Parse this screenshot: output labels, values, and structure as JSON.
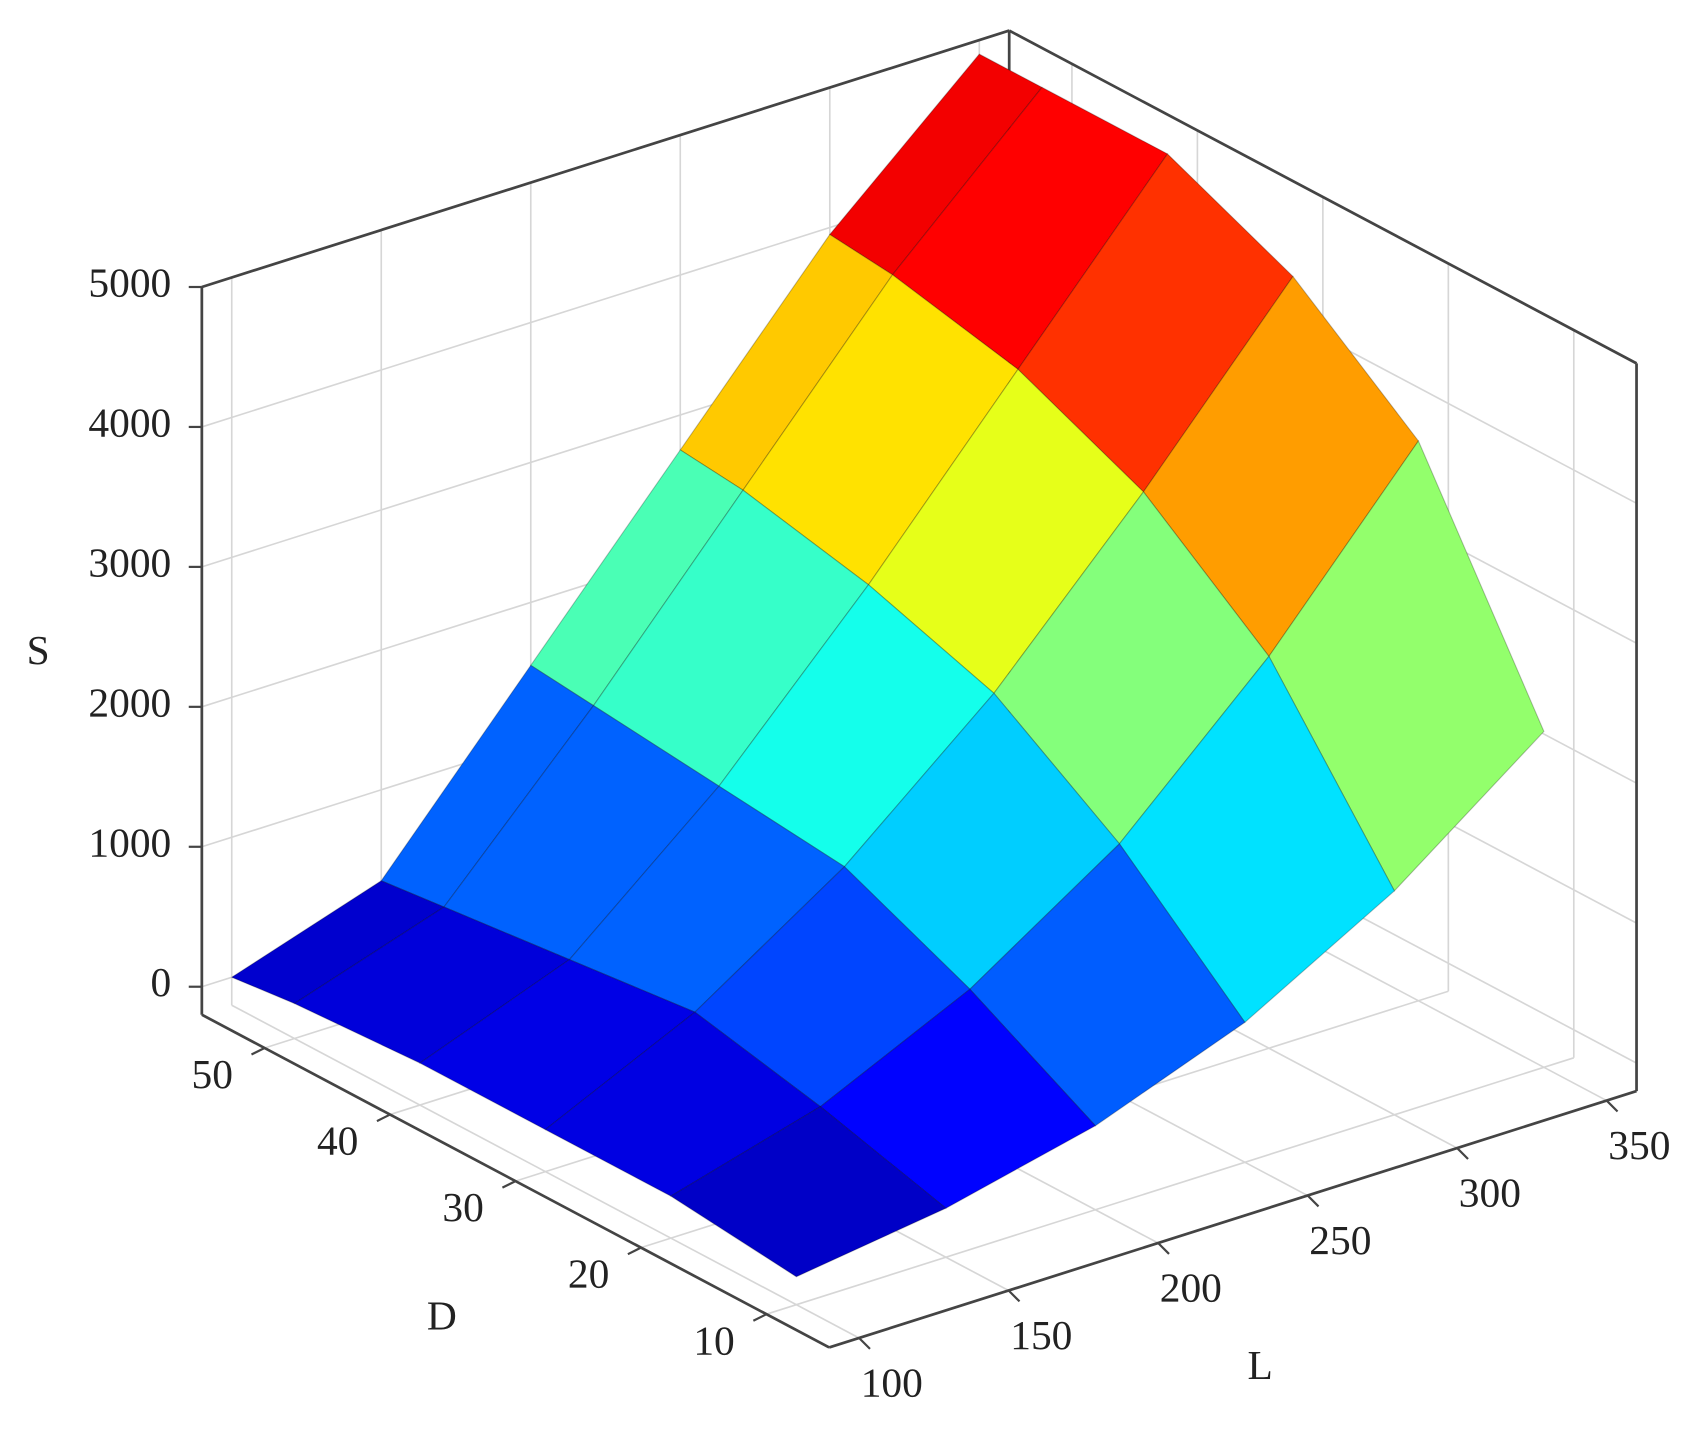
{
  "chart_data": {
    "type": "surface",
    "x_label": "L",
    "y_label": "D",
    "z_label": "S",
    "x": [
      100,
      150,
      200,
      250,
      300,
      350
    ],
    "y": [
      10,
      20,
      30,
      40,
      50,
      55
    ],
    "z": [
      [
        0,
        150,
        400,
        800,
        1400,
        2200
      ],
      [
        100,
        400,
        900,
        1600,
        2600,
        3800
      ],
      [
        100,
        600,
        1300,
        2200,
        3300,
        4500
      ],
      [
        100,
        500,
        1400,
        2500,
        3700,
        4900
      ],
      [
        50,
        400,
        1500,
        2700,
        3900,
        4900
      ],
      [
        0,
        350,
        1550,
        2750,
        3950,
        4900
      ]
    ],
    "xlim": [
      90,
      360
    ],
    "ylim": [
      5,
      55
    ],
    "zlim": [
      -200,
      5000
    ],
    "xticks": [
      100,
      150,
      200,
      250,
      300,
      350
    ],
    "yticks": [
      10,
      20,
      30,
      40,
      50
    ],
    "zticks": [
      0,
      1000,
      2000,
      3000,
      4000,
      5000
    ],
    "colormap": "jet",
    "grid": true
  }
}
